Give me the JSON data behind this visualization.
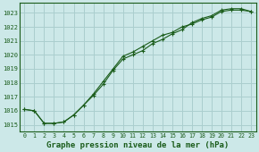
{
  "title": "Graphe pression niveau de la mer (hPa)",
  "bg_color": "#cce8e8",
  "grid_color": "#aacece",
  "line_color": "#1a5c1a",
  "xlim": [
    -0.5,
    23.5
  ],
  "ylim": [
    1014.5,
    1023.7
  ],
  "xticks": [
    0,
    1,
    2,
    3,
    4,
    5,
    6,
    7,
    8,
    9,
    10,
    11,
    12,
    13,
    14,
    15,
    16,
    17,
    18,
    19,
    20,
    21,
    22,
    23
  ],
  "yticks": [
    1015,
    1016,
    1017,
    1018,
    1019,
    1020,
    1021,
    1022,
    1023
  ],
  "series1_x": [
    0,
    1,
    2,
    3,
    4,
    5,
    6,
    7,
    8,
    9,
    10,
    11,
    12,
    13,
    14,
    15,
    16,
    17,
    18,
    19,
    20,
    21,
    22,
    23
  ],
  "series1_y": [
    1016.1,
    1016.0,
    1015.1,
    1015.1,
    1015.2,
    1015.7,
    1016.4,
    1017.2,
    1018.1,
    1019.0,
    1019.9,
    1020.2,
    1020.6,
    1021.0,
    1021.4,
    1021.6,
    1022.0,
    1022.2,
    1022.5,
    1022.7,
    1023.1,
    1023.2,
    1023.2,
    1023.1
  ],
  "series2_x": [
    0,
    1,
    2,
    3,
    4,
    5,
    6,
    7,
    8,
    9,
    10,
    11,
    12,
    13,
    14,
    15,
    16,
    17,
    18,
    19,
    20,
    21,
    22,
    23
  ],
  "series2_y": [
    1016.1,
    1016.0,
    1015.1,
    1015.1,
    1015.2,
    1015.7,
    1016.4,
    1017.1,
    1017.9,
    1018.9,
    1019.7,
    1020.0,
    1020.3,
    1020.8,
    1021.1,
    1021.5,
    1021.8,
    1022.3,
    1022.6,
    1022.8,
    1023.2,
    1023.3,
    1023.3,
    1023.1
  ],
  "title_fontsize": 6.5,
  "tick_fontsize": 5.5
}
